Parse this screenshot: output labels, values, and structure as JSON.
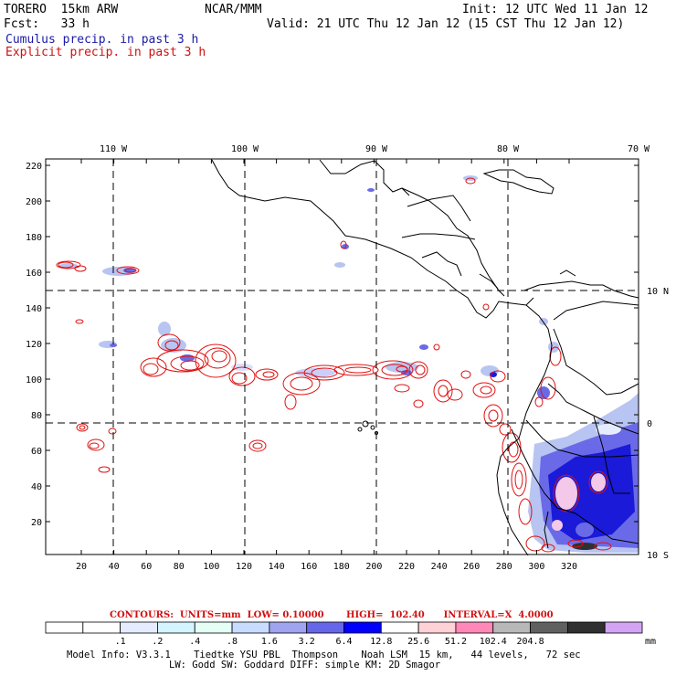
{
  "header": {
    "model": "TORERO  15km ARW",
    "org": "NCAR/MMM",
    "init": "Init: 12 UTC Wed 11 Jan 12",
    "fcst": "Fcst:   33 h",
    "valid": "Valid: 21 UTC Thu 12 Jan 12 (15 CST Thu 12 Jan 12)",
    "cumulus": "Cumulus precip. in past 3 h",
    "explicit": "Explicit precip. in past 3 h"
  },
  "map": {
    "lon_labels": [
      "110 W",
      "100 W",
      "90 W",
      "80 W",
      "70 W"
    ],
    "lat_labels": [
      "10 N",
      "0",
      "10 S"
    ],
    "y_ticks": [
      "220",
      "200",
      "180",
      "160",
      "140",
      "120",
      "100",
      "80",
      "60",
      "40",
      "20"
    ],
    "x_ticks": [
      "20",
      "40",
      "60",
      "80",
      "100",
      "120",
      "140",
      "160",
      "180",
      "200",
      "220",
      "240",
      "260",
      "280",
      "300",
      "320"
    ],
    "colors": {
      "coast": "#000000",
      "explicit": "#e01010",
      "cumulus_light": "#b8c4f2",
      "cumulus_mid": "#6a6ae8",
      "cumulus_dark": "#1a1ad8"
    }
  },
  "contours": {
    "text": "CONTOURS:  UNITS=mm  LOW= 0.10000       HIGH=  102.40      INTERVAL=X  4.0000"
  },
  "colorbar": {
    "labels": [
      ".1",
      ".2",
      ".4",
      ".8",
      "1.6",
      "3.2",
      "6.4",
      "12.8",
      "25.6",
      "51.2",
      "102.4",
      "204.8"
    ],
    "unit": "mm",
    "colors": [
      "#ffffff",
      "#ffffff",
      "#e6ecff",
      "#d4f4ff",
      "#e6fff6",
      "#c8dcff",
      "#9ea4f0",
      "#6666e8",
      "#0000ff",
      "#ffffff",
      "#ffd2d8",
      "#ff88b8",
      "#b8b8b8",
      "#606060",
      "#303030",
      "#d4a4f4"
    ]
  },
  "info": {
    "line1": "Model Info: V3.3.1    Tiedtke YSU PBL  Thompson    Noah LSM  15 km,   44 levels,   72 sec",
    "line2": "LW: Godd SW: Goddard DIFF: simple KM: 2D Smagor"
  }
}
